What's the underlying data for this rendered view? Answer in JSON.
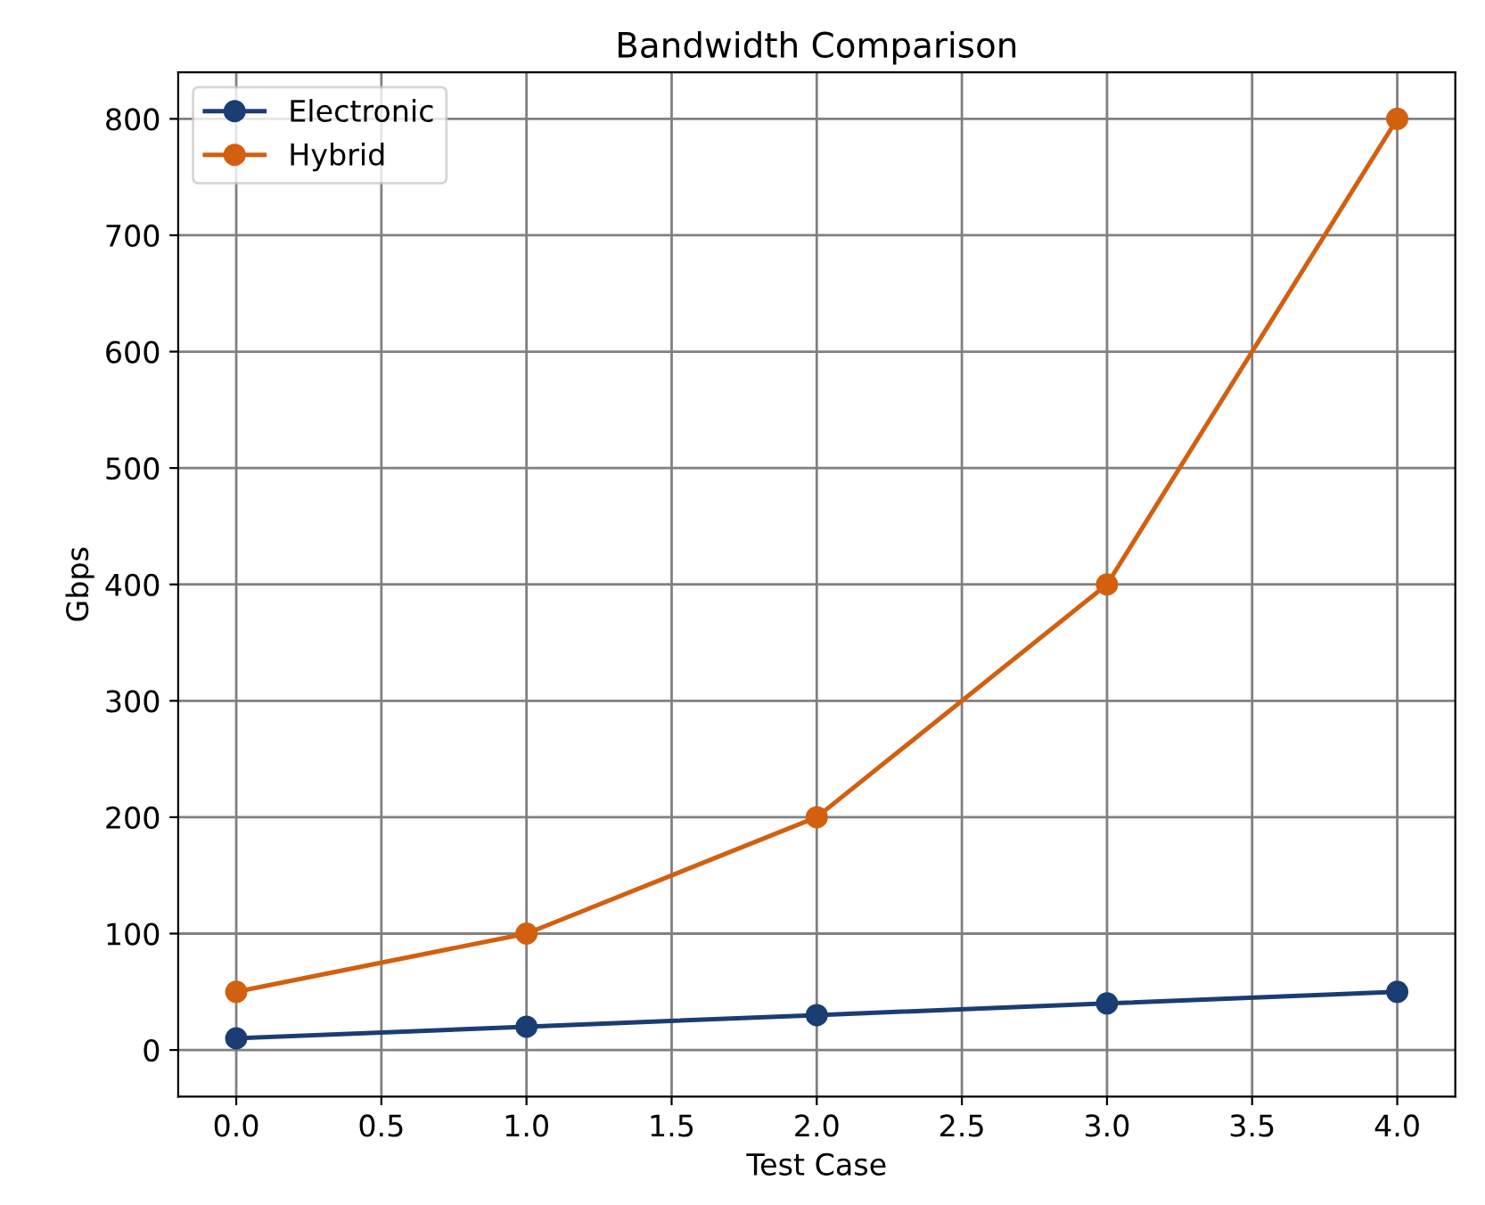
{
  "chart_data": {
    "type": "line",
    "title": "Bandwidth Comparison",
    "xlabel": "Test Case",
    "ylabel": "Gbps",
    "x": [
      0,
      1,
      2,
      3,
      4
    ],
    "series": [
      {
        "name": "Electronic",
        "color": "#1a3d73",
        "values": [
          10,
          20,
          30,
          40,
          50
        ]
      },
      {
        "name": "Hybrid",
        "color": "#d2600f",
        "values": [
          50,
          100,
          200,
          400,
          800
        ]
      }
    ],
    "xlim": [
      -0.2,
      4.2
    ],
    "xticks": [
      {
        "value": 0,
        "label": "0.0"
      },
      {
        "value": 0.5,
        "label": "0.5"
      },
      {
        "value": 1,
        "label": "1.0"
      },
      {
        "value": 1.5,
        "label": "1.5"
      },
      {
        "value": 2,
        "label": "2.0"
      },
      {
        "value": 2.5,
        "label": "2.5"
      },
      {
        "value": 3,
        "label": "3.0"
      },
      {
        "value": 3.5,
        "label": "3.5"
      },
      {
        "value": 4,
        "label": "4.0"
      }
    ],
    "ylim": [
      -40,
      840
    ],
    "yticks": [
      0,
      100,
      200,
      300,
      400,
      500,
      600,
      700,
      800
    ],
    "grid": true,
    "legend": "top left",
    "marker": "circle",
    "line_style": "solid"
  }
}
